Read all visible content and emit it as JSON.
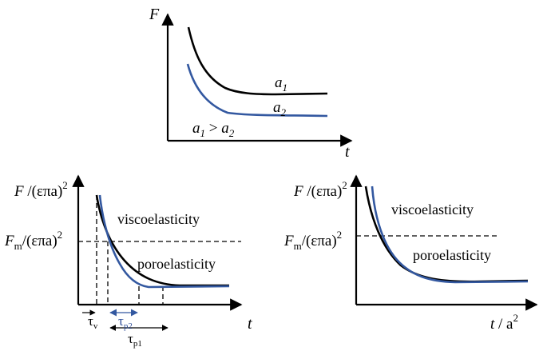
{
  "colors": {
    "black": "#000000",
    "blue": "#3358a0"
  },
  "top": {
    "y_label": "F",
    "x_label": "t",
    "curve_1_label": "a",
    "curve_1_sub": "1",
    "curve_2_label": "a",
    "curve_2_sub": "2",
    "relation_a": "a",
    "relation_sub1": "1",
    "relation_op": " > ",
    "relation_b": "a",
    "relation_sub2": "2"
  },
  "left": {
    "y_label_F": "F",
    "y_label_rest": " /(επa)",
    "y_label_sup": "2",
    "fm_label_F": "F",
    "fm_label_sub": "m",
    "fm_label_rest": "/(επa)",
    "fm_label_sup": "2",
    "x_label": "t",
    "region_1": "viscoelasticity",
    "region_2": "poroelasticity",
    "tau_v": "τ",
    "tau_v_sub": "v",
    "tau_p2": "τ",
    "tau_p2_sub": "p2",
    "tau_p1": "τ",
    "tau_p1_sub": "p1"
  },
  "right": {
    "y_label_F": "F",
    "y_label_rest": " /(επa)",
    "y_label_sup": "2",
    "fm_label_F": "F",
    "fm_label_sub": "m",
    "fm_label_rest": "/(επa)",
    "fm_label_sup": "2",
    "x_label_t": "t",
    "x_label_rest": " / a",
    "x_label_sup": "2",
    "region_1": "viscoelasticity",
    "region_2": "poroelasticity"
  }
}
